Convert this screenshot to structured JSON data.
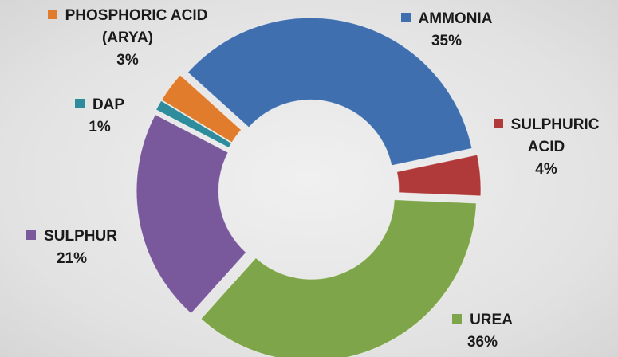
{
  "chart_data": {
    "type": "donut",
    "categories": [
      "AMMONIA",
      "SULPHURIC ACID",
      "UREA",
      "SULPHUR",
      "DAP",
      "PHOSPHORIC ACID (ARYA)"
    ],
    "values": [
      35,
      4,
      36,
      21,
      1,
      3
    ],
    "value_labels": [
      "35%",
      "4%",
      "36%",
      "21%",
      "1%",
      "3%"
    ],
    "colors": [
      "#3f6fae",
      "#b03a3a",
      "#7fa54a",
      "#79599b",
      "#2e8c9c",
      "#e07c2c"
    ]
  }
}
